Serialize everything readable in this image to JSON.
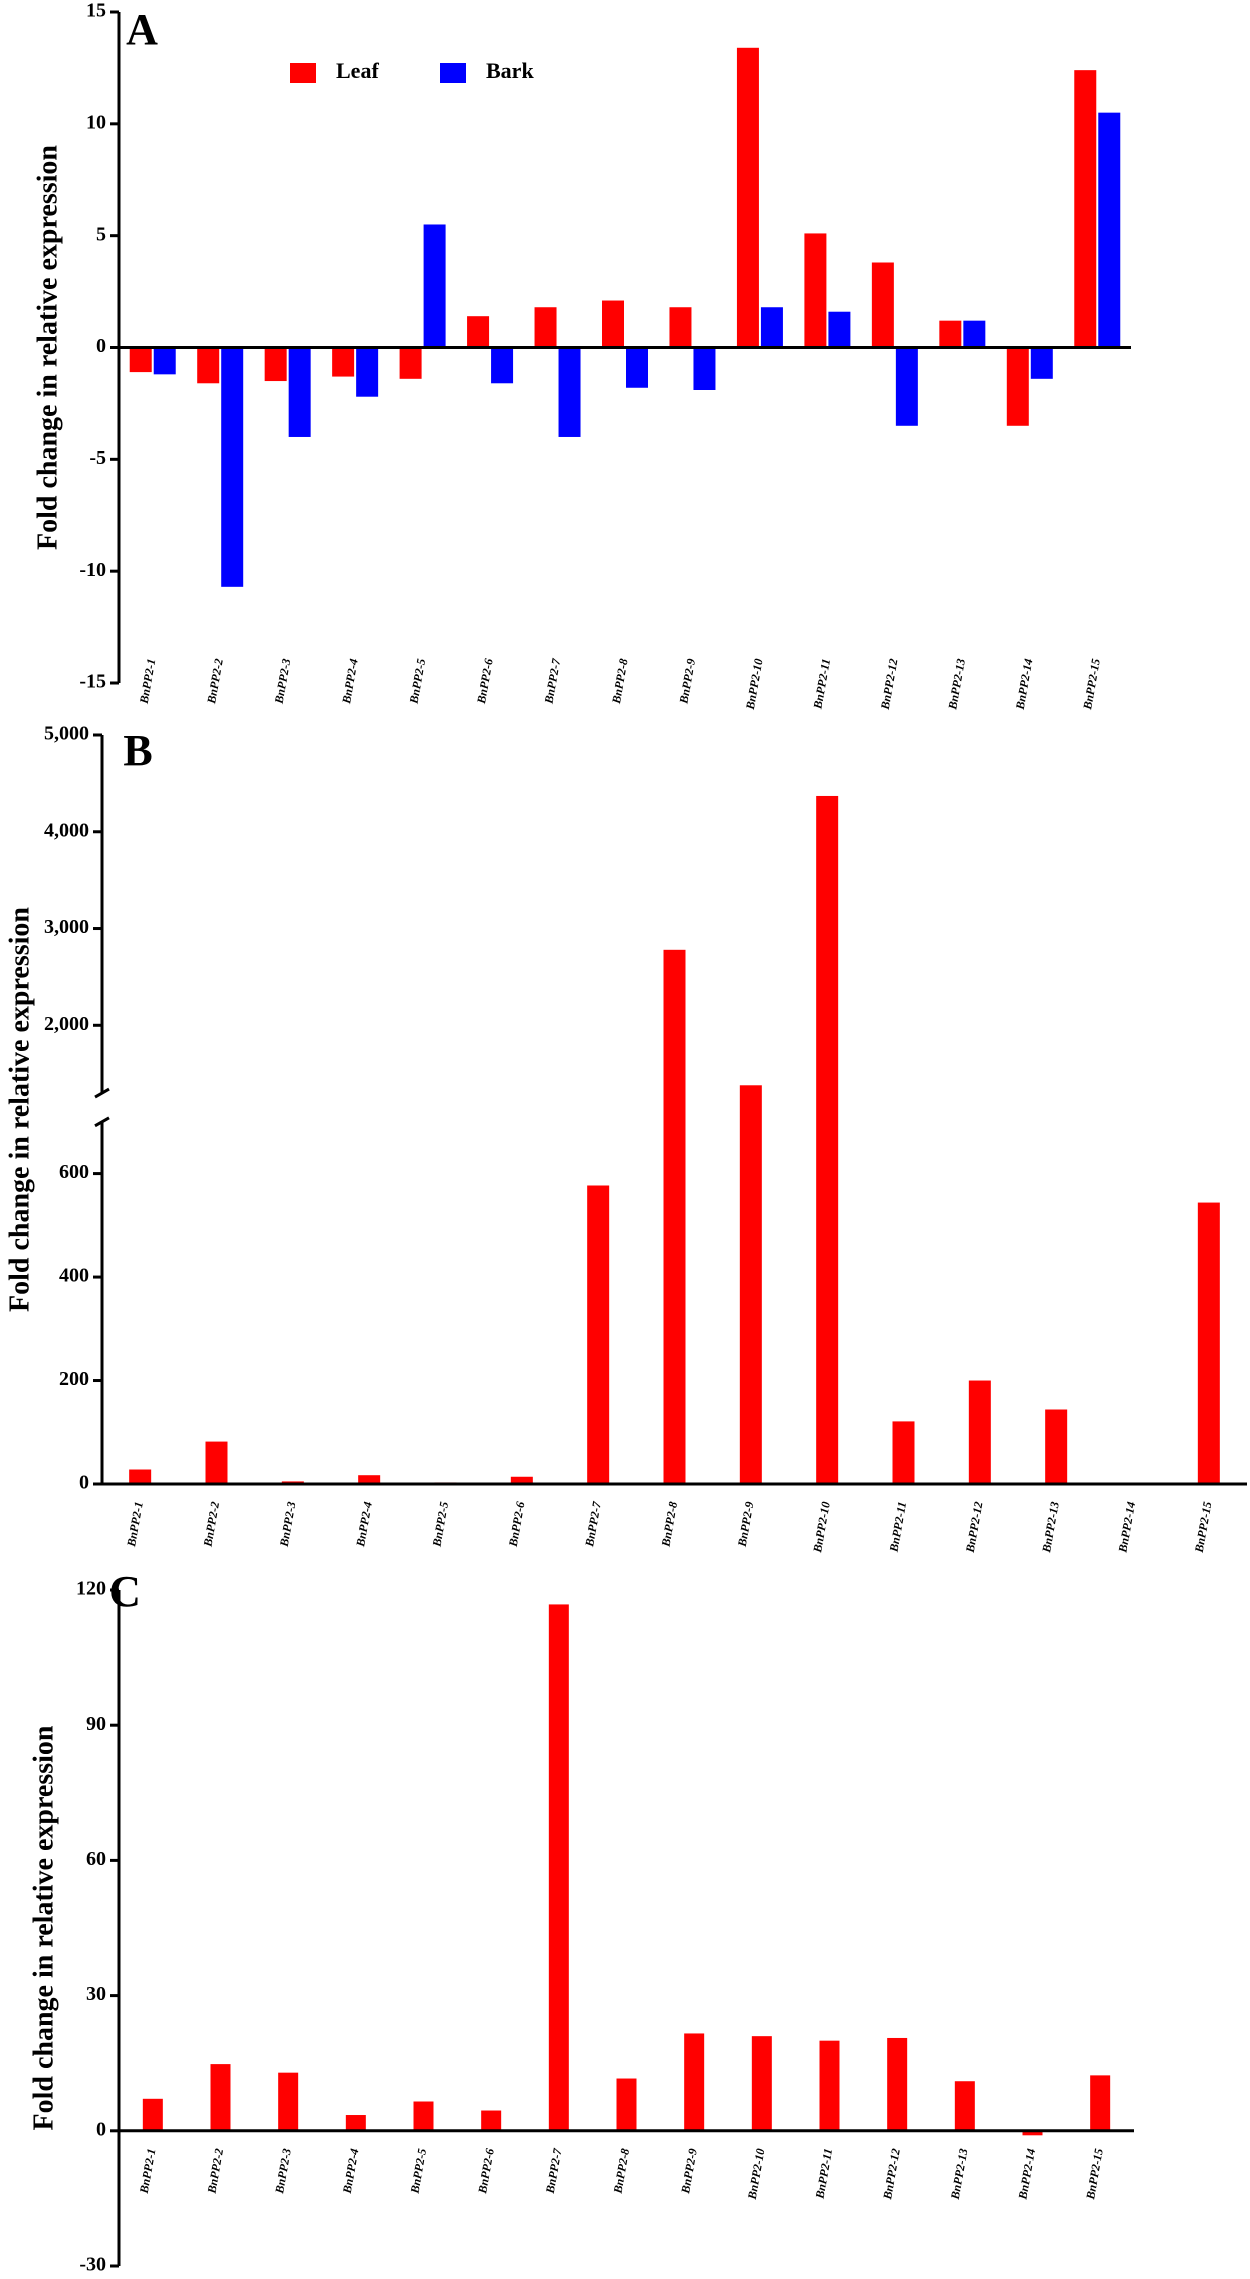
{
  "chart_data": [
    {
      "type": "bar",
      "label": "A",
      "ylabel": "Fold change in relative expression",
      "categories": [
        "BnPP2-1",
        "BnPP2-2",
        "BnPP2-3",
        "BnPP2-4",
        "BnPP2-5",
        "BnPP2-6",
        "BnPP2-7",
        "BnPP2-8",
        "BnPP2-9",
        "BnPP2-10",
        "BnPP2-11",
        "BnPP2-12",
        "BnPP2-13",
        "BnPP2-14",
        "BnPP2-15"
      ],
      "series": [
        {
          "name": "Leaf",
          "color": "#ff0000",
          "values": [
            -1.1,
            -1.6,
            -1.5,
            -1.3,
            -1.4,
            1.4,
            1.8,
            2.1,
            1.8,
            13.4,
            5.1,
            3.8,
            1.2,
            -3.5,
            12.4
          ]
        },
        {
          "name": "Bark",
          "color": "#0000ff",
          "values": [
            -1.2,
            -10.7,
            -4.0,
            -2.2,
            5.5,
            -1.6,
            -4.0,
            -1.8,
            -1.9,
            1.8,
            1.6,
            -3.5,
            1.2,
            -1.4,
            10.5
          ]
        }
      ],
      "ylim": [
        -15,
        15
      ],
      "yticks": [
        -15,
        -10,
        -5,
        0,
        5,
        10,
        15
      ]
    },
    {
      "type": "bar",
      "label": "B",
      "ylabel": "Fold change in relative expression",
      "categories": [
        "BnPP2-1",
        "BnPP2-2",
        "BnPP2-3",
        "BnPP2-4",
        "BnPP2-5",
        "BnPP2-6",
        "BnPP2-7",
        "BnPP2-8",
        "BnPP2-9",
        "BnPP2-10",
        "BnPP2-11",
        "BnPP2-12",
        "BnPP2-13",
        "BnPP2-14",
        "BnPP2-15"
      ],
      "values": [
        28,
        82,
        5,
        17,
        3,
        14,
        577,
        2780,
        1380,
        4370,
        121,
        200,
        144,
        1,
        544
      ],
      "color": "#ff0000",
      "ylim": [
        0,
        5000
      ],
      "axis_break": [
        700,
        1300
      ],
      "yticks": [
        0,
        200,
        400,
        600,
        {
          "value": 2000,
          "label": "2,000"
        },
        {
          "value": 3000,
          "label": "3,000"
        },
        {
          "value": 4000,
          "label": "4,000"
        },
        {
          "value": 5000,
          "label": "5,000"
        }
      ]
    },
    {
      "type": "bar",
      "label": "C",
      "ylabel": "Fold change in relative expression",
      "categories": [
        "BnPP2-1",
        "BnPP2-2",
        "BnPP2-3",
        "BnPP2-4",
        "BnPP2-5",
        "BnPP2-6",
        "BnPP2-7",
        "BnPP2-8",
        "BnPP2-9",
        "BnPP2-10",
        "BnPP2-11",
        "BnPP2-12",
        "BnPP2-13",
        "BnPP2-14",
        "BnPP2-15"
      ],
      "values": [
        7.1,
        14.8,
        12.9,
        3.5,
        6.5,
        4.5,
        116.8,
        11.6,
        21.6,
        21,
        20,
        20.6,
        11,
        -1,
        12.3
      ],
      "color": "#ff0000",
      "ylim": [
        -30,
        120
      ],
      "yticks": [
        -30,
        0,
        30,
        60,
        90,
        120
      ]
    }
  ]
}
